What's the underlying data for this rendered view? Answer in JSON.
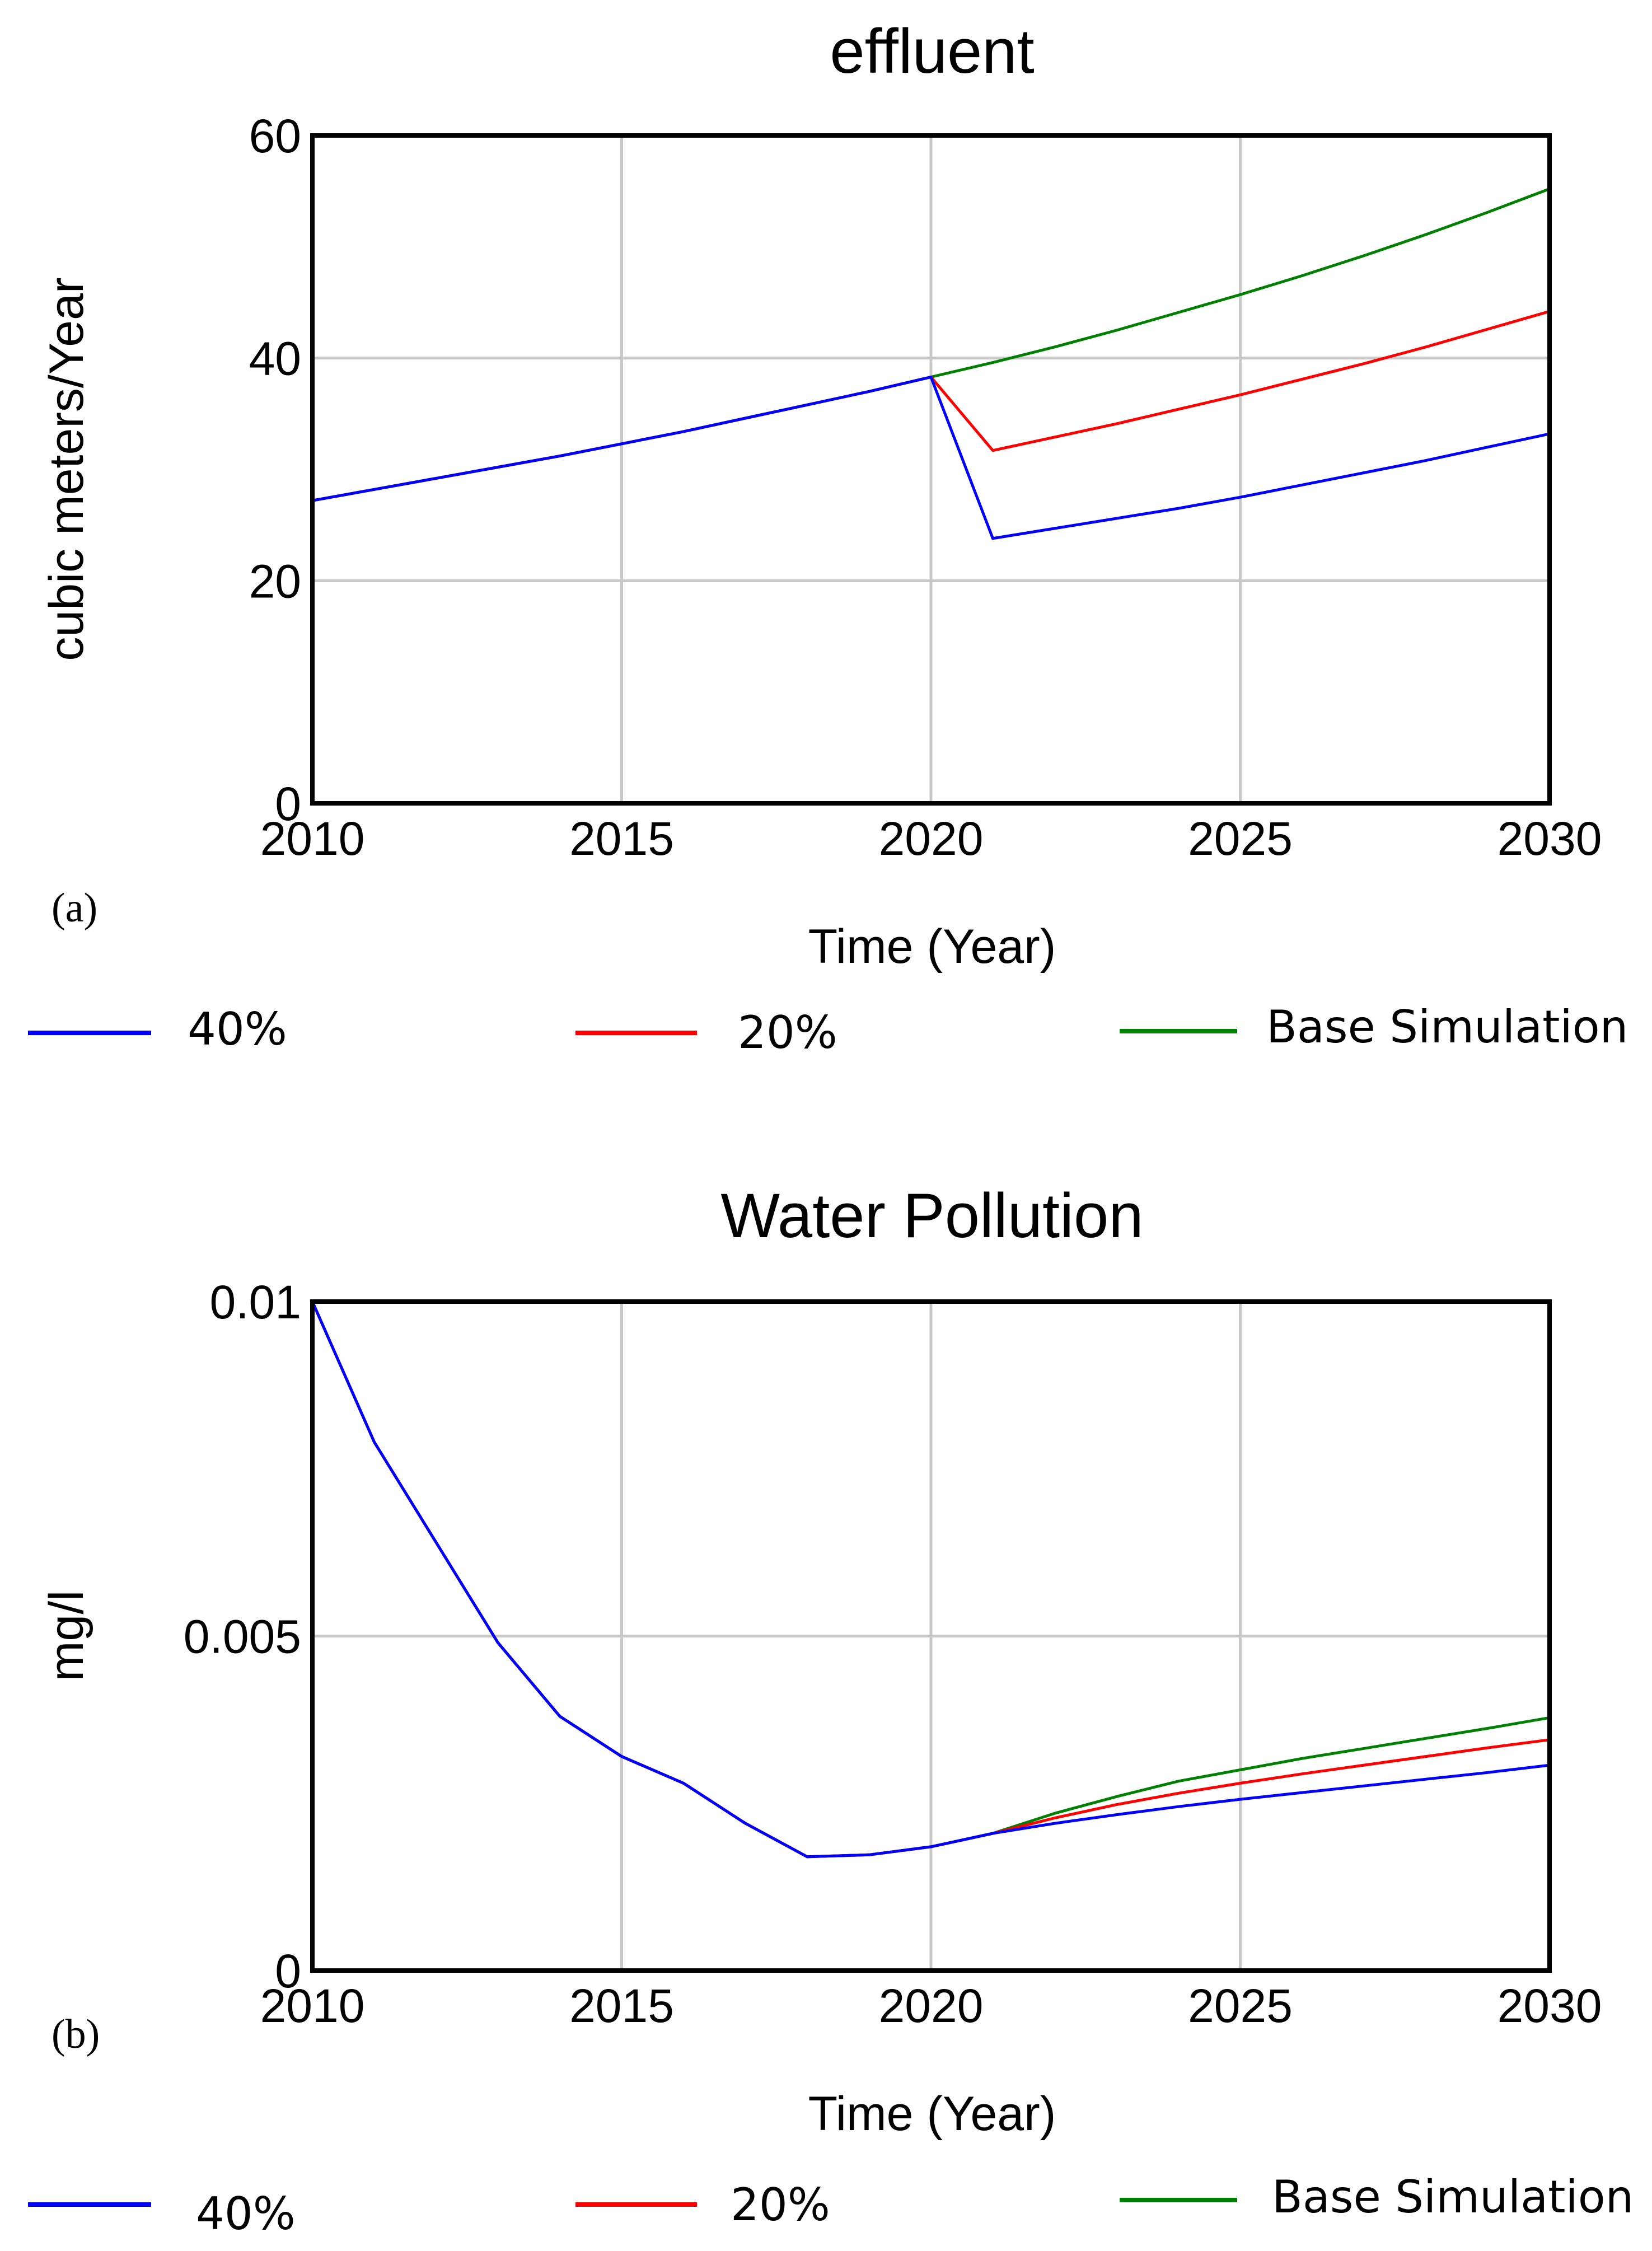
{
  "chart_data": [
    {
      "type": "line",
      "panel_label": "(a)",
      "title": "effluent",
      "xlabel": "Time (Year)",
      "ylabel": "cubic meters/Year",
      "xlim": [
        2010,
        2030
      ],
      "ylim": [
        0,
        60
      ],
      "xticks": [
        2010,
        2015,
        2020,
        2025,
        2030
      ],
      "xtick_labels": [
        "2010",
        "2015",
        "2020",
        "2025",
        "2030"
      ],
      "yticks": [
        0,
        20,
        40,
        60
      ],
      "ytick_labels": [
        "0",
        "20",
        "40",
        "60"
      ],
      "grid": true,
      "legend_position": "bottom",
      "x": [
        2010,
        2011,
        2012,
        2013,
        2014,
        2015,
        2016,
        2017,
        2018,
        2019,
        2020,
        2021,
        2022,
        2023,
        2024,
        2025,
        2026,
        2027,
        2028,
        2029,
        2030
      ],
      "series": [
        {
          "name": "Base Simulation",
          "legend": "Base Simulation",
          "color": "#008000",
          "values": [
            27.2,
            28.2,
            29.2,
            30.2,
            31.2,
            32.3,
            33.4,
            34.6,
            35.8,
            37.0,
            38.3,
            39.6,
            41.0,
            42.5,
            44.1,
            45.7,
            47.4,
            49.2,
            51.1,
            53.1,
            55.2
          ]
        },
        {
          "name": "20%",
          "legend": "20%",
          "color": "#ff0000",
          "values": [
            27.2,
            28.2,
            29.2,
            30.2,
            31.2,
            32.3,
            33.4,
            34.6,
            35.8,
            37.0,
            38.3,
            31.7,
            32.9,
            34.1,
            35.4,
            36.7,
            38.1,
            39.5,
            41.0,
            42.6,
            44.2
          ]
        },
        {
          "name": "40%",
          "legend": "40%",
          "color": "#0000ff",
          "values": [
            27.2,
            28.2,
            29.2,
            30.2,
            31.2,
            32.3,
            33.4,
            34.6,
            35.8,
            37.0,
            38.3,
            23.8,
            24.7,
            25.6,
            26.5,
            27.5,
            28.6,
            29.7,
            30.8,
            32.0,
            33.2
          ]
        }
      ]
    },
    {
      "type": "line",
      "panel_label": "(b)",
      "title": "Water Pollution",
      "xlabel": "Time (Year)",
      "ylabel": "mg/l",
      "xlim": [
        2010,
        2030
      ],
      "ylim": [
        0,
        0.01
      ],
      "xticks": [
        2010,
        2015,
        2020,
        2025,
        2030
      ],
      "xtick_labels": [
        "2010",
        "2015",
        "2020",
        "2025",
        "2030"
      ],
      "yticks": [
        0,
        0.005,
        0.01
      ],
      "ytick_labels": [
        "0",
        "0.005",
        "0.01"
      ],
      "grid": true,
      "legend_position": "bottom",
      "x": [
        2010,
        2011,
        2012,
        2013,
        2014,
        2015,
        2016,
        2017,
        2018,
        2019,
        2020,
        2021,
        2022,
        2023,
        2024,
        2025,
        2026,
        2027,
        2028,
        2029,
        2030
      ],
      "series": [
        {
          "name": "Base Simulation",
          "legend": "Base Simulation",
          "color": "#008000",
          "values": [
            0.01,
            0.0079,
            0.0064,
            0.0049,
            0.0038,
            0.0032,
            0.0028,
            0.0022,
            0.0017,
            0.00173,
            0.00185,
            0.00205,
            0.00235,
            0.0026,
            0.00283,
            0.003,
            0.00317,
            0.00332,
            0.00347,
            0.00362,
            0.00378
          ]
        },
        {
          "name": "20%",
          "legend": "20%",
          "color": "#ff0000",
          "values": [
            0.01,
            0.0079,
            0.0064,
            0.0049,
            0.0038,
            0.0032,
            0.0028,
            0.0022,
            0.0017,
            0.00173,
            0.00185,
            0.00205,
            0.00228,
            0.00248,
            0.00265,
            0.0028,
            0.00294,
            0.00307,
            0.0032,
            0.00333,
            0.00345
          ]
        },
        {
          "name": "40%",
          "legend": "40%",
          "color": "#0000ff",
          "values": [
            0.01,
            0.0079,
            0.0064,
            0.0049,
            0.0038,
            0.0032,
            0.0028,
            0.0022,
            0.0017,
            0.00173,
            0.00185,
            0.00205,
            0.0022,
            0.00233,
            0.00245,
            0.00256,
            0.00266,
            0.00276,
            0.00286,
            0.00296,
            0.00307
          ]
        }
      ]
    }
  ]
}
